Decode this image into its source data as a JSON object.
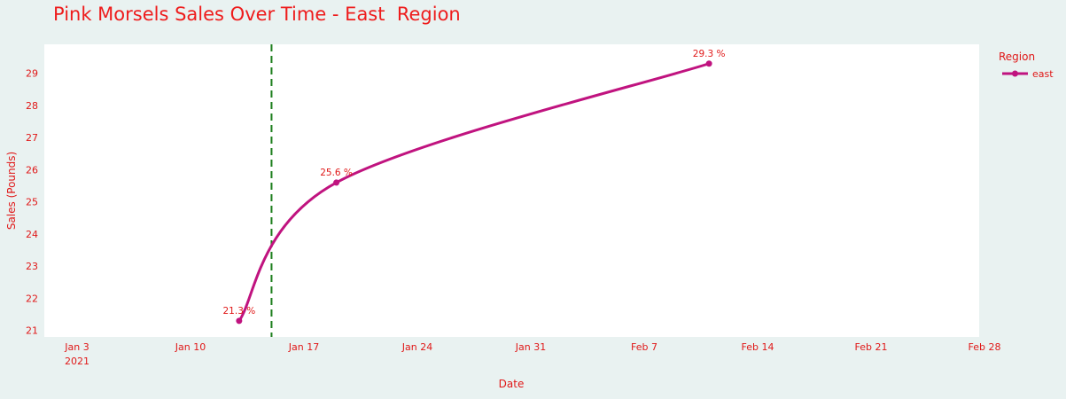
{
  "chart_data": {
    "type": "line",
    "title": "Pink Morsels Sales Over Time - East  Region",
    "xlabel": "Date",
    "ylabel": "Sales (Pounds)",
    "x_axis_type": "date",
    "xlim": [
      "2021-01-01",
      "2021-02-28"
    ],
    "ylim": [
      20.8,
      29.9
    ],
    "x_ticks": [
      {
        "date": "2021-01-03",
        "label": "Jan 3",
        "sublabel": "2021"
      },
      {
        "date": "2021-01-10",
        "label": "Jan 10"
      },
      {
        "date": "2021-01-17",
        "label": "Jan 17"
      },
      {
        "date": "2021-01-24",
        "label": "Jan 24"
      },
      {
        "date": "2021-01-31",
        "label": "Jan 31"
      },
      {
        "date": "2021-02-07",
        "label": "Feb 7"
      },
      {
        "date": "2021-02-14",
        "label": "Feb 14"
      },
      {
        "date": "2021-02-21",
        "label": "Feb 21"
      },
      {
        "date": "2021-02-28",
        "label": "Feb 28"
      }
    ],
    "y_ticks": [
      21,
      22,
      23,
      24,
      25,
      26,
      27,
      28,
      29
    ],
    "series": [
      {
        "name": "east",
        "color": "#c0137f",
        "line_shape": "spline",
        "markers": true,
        "x": [
          "2021-01-13",
          "2021-01-19",
          "2021-02-11"
        ],
        "y": [
          21.3,
          25.6,
          29.3
        ],
        "labels": [
          "21.3 %",
          "25.6 %",
          "29.3 %"
        ]
      }
    ],
    "reference_line": {
      "orientation": "vertical",
      "x": "2021-01-15",
      "color": "#1a7d1a",
      "style": "dashed"
    },
    "legend": {
      "title": "Region",
      "position": "right-top"
    },
    "grid": false,
    "plot_background": "#ffffff",
    "paper_background": "#e9f2f1",
    "text_color": "#e01818"
  }
}
